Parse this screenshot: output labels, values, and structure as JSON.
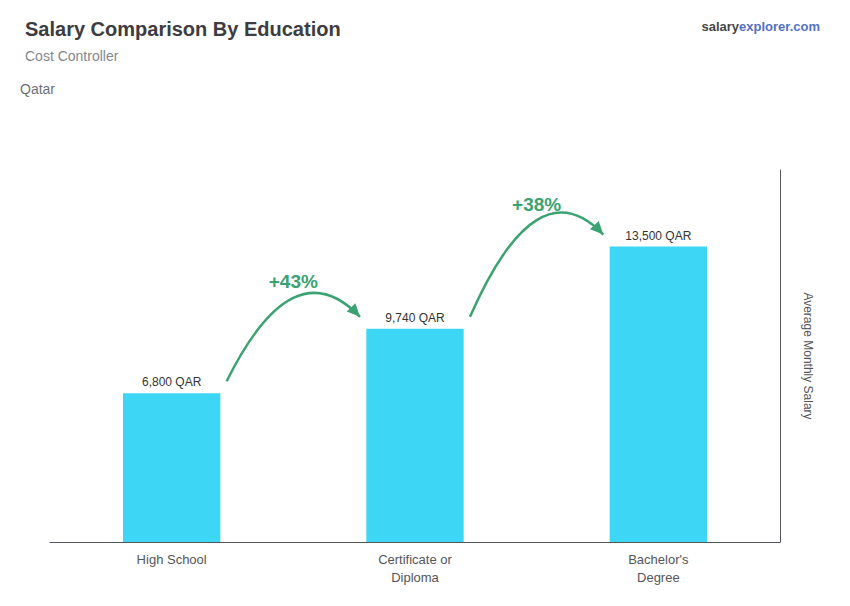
{
  "chart_data": {
    "type": "bar",
    "title": "Salary Comparison By Education",
    "subtitle": "Cost Controller",
    "ylabel": "Average Monthly Salary",
    "categories": [
      "High School",
      "Certificate or\nDiploma",
      "Bachelor's\nDegree"
    ],
    "values": [
      6800,
      9740,
      13500
    ],
    "value_labels": [
      "6,800 QAR",
      "9,740 QAR",
      "13,500 QAR"
    ],
    "data_labels": true,
    "color": "#3dd6f5",
    "ylim": [
      0,
      17000
    ],
    "tick_labels": "x",
    "grid": false,
    "annotations": [
      {
        "text": "+43%",
        "from": "High School",
        "to": "Certificate or\nDiploma"
      },
      {
        "text": "+38%",
        "from": "Certificate or\nDiploma",
        "to": "Bachelor's\nDegree"
      },
      "Qatar",
      "salary",
      "explorer.com"
    ]
  }
}
